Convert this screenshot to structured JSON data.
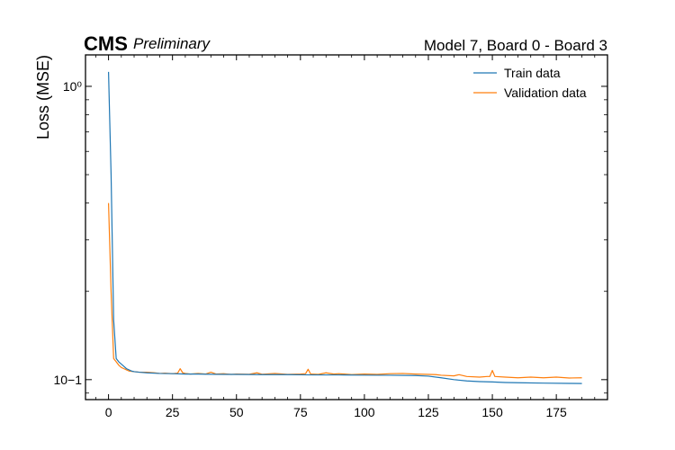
{
  "colors": {
    "train": "#1f77b4",
    "validation": "#ff7f0e",
    "frame": "#000000"
  },
  "chart_data": {
    "type": "line",
    "experiment_label": "CMS",
    "status_label": "Preliminary",
    "title": "Model 7, Board 0 - Board 3",
    "xlabel": "",
    "ylabel": "Loss (MSE)",
    "yscale": "log",
    "xlim": [
      -9,
      195
    ],
    "ylim": [
      0.0855,
      1.28
    ],
    "xticks": [
      0,
      25,
      50,
      75,
      100,
      125,
      150,
      175
    ],
    "xtick_labels": [
      "0",
      "25",
      "50",
      "75",
      "100",
      "125",
      "150",
      "175"
    ],
    "yticks_major": [
      0.1,
      1.0
    ],
    "ytick_labels": [
      "10−1",
      "10⁰"
    ],
    "grid": false,
    "legend_position": "top-right",
    "series": [
      {
        "name": "Train data",
        "color": "#1f77b4",
        "points": [
          [
            0,
            1.12
          ],
          [
            1,
            0.5
          ],
          [
            2,
            0.16
          ],
          [
            3,
            0.118
          ],
          [
            4,
            0.115
          ],
          [
            5,
            0.113
          ],
          [
            6,
            0.111
          ],
          [
            7,
            0.109
          ],
          [
            8,
            0.108
          ],
          [
            9,
            0.107
          ],
          [
            10,
            0.1065
          ],
          [
            12,
            0.106
          ],
          [
            15,
            0.1055
          ],
          [
            20,
            0.105
          ],
          [
            25,
            0.1048
          ],
          [
            30,
            0.1045
          ],
          [
            35,
            0.1045
          ],
          [
            40,
            0.1043
          ],
          [
            50,
            0.1042
          ],
          [
            60,
            0.104
          ],
          [
            70,
            0.104
          ],
          [
            80,
            0.1038
          ],
          [
            90,
            0.1038
          ],
          [
            100,
            0.1036
          ],
          [
            110,
            0.1035
          ],
          [
            120,
            0.1033
          ],
          [
            125,
            0.1028
          ],
          [
            130,
            0.1015
          ],
          [
            135,
            0.1
          ],
          [
            140,
            0.099
          ],
          [
            145,
            0.0985
          ],
          [
            150,
            0.0982
          ],
          [
            155,
            0.0978
          ],
          [
            160,
            0.0976
          ],
          [
            170,
            0.0973
          ],
          [
            180,
            0.0971
          ],
          [
            185,
            0.097
          ]
        ]
      },
      {
        "name": "Validation data",
        "color": "#ff7f0e",
        "points": [
          [
            0,
            0.4
          ],
          [
            1,
            0.2
          ],
          [
            2,
            0.118
          ],
          [
            3,
            0.115
          ],
          [
            4,
            0.112
          ],
          [
            5,
            0.11
          ],
          [
            6,
            0.109
          ],
          [
            7,
            0.108
          ],
          [
            8,
            0.107
          ],
          [
            10,
            0.1065
          ],
          [
            12,
            0.106
          ],
          [
            15,
            0.106
          ],
          [
            18,
            0.1055
          ],
          [
            20,
            0.105
          ],
          [
            22,
            0.1052
          ],
          [
            25,
            0.1048
          ],
          [
            27,
            0.1052
          ],
          [
            28,
            0.109
          ],
          [
            29,
            0.1055
          ],
          [
            30,
            0.105
          ],
          [
            32,
            0.1045
          ],
          [
            35,
            0.105
          ],
          [
            38,
            0.1045
          ],
          [
            40,
            0.106
          ],
          [
            42,
            0.1045
          ],
          [
            45,
            0.1048
          ],
          [
            48,
            0.1042
          ],
          [
            50,
            0.1045
          ],
          [
            55,
            0.1043
          ],
          [
            58,
            0.1055
          ],
          [
            60,
            0.1043
          ],
          [
            65,
            0.105
          ],
          [
            70,
            0.1042
          ],
          [
            75,
            0.1045
          ],
          [
            77,
            0.1048
          ],
          [
            78,
            0.1085
          ],
          [
            79,
            0.1045
          ],
          [
            82,
            0.1042
          ],
          [
            85,
            0.1055
          ],
          [
            88,
            0.1045
          ],
          [
            90,
            0.1048
          ],
          [
            95,
            0.104
          ],
          [
            100,
            0.1045
          ],
          [
            105,
            0.1042
          ],
          [
            110,
            0.1048
          ],
          [
            115,
            0.105
          ],
          [
            120,
            0.1045
          ],
          [
            125,
            0.1042
          ],
          [
            128,
            0.104
          ],
          [
            130,
            0.1035
          ],
          [
            135,
            0.103
          ],
          [
            137,
            0.104
          ],
          [
            140,
            0.1025
          ],
          [
            145,
            0.102
          ],
          [
            148,
            0.1025
          ],
          [
            149,
            0.1025
          ],
          [
            150,
            0.1075
          ],
          [
            151,
            0.1025
          ],
          [
            155,
            0.102
          ],
          [
            160,
            0.1015
          ],
          [
            165,
            0.102
          ],
          [
            170,
            0.1015
          ],
          [
            175,
            0.102
          ],
          [
            180,
            0.1013
          ],
          [
            185,
            0.1015
          ]
        ]
      }
    ]
  }
}
